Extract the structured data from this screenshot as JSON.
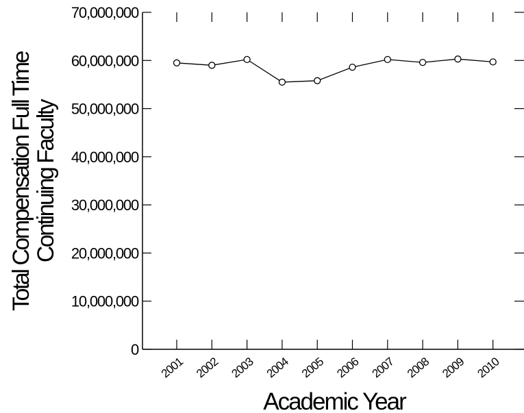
{
  "chart_data": {
    "type": "line",
    "title": "",
    "xlabel": "Academic Year",
    "ylabel": [
      "Total Compensation Full Time",
      "Continuing Faculty"
    ],
    "categories": [
      "2001",
      "2002",
      "2003",
      "2004",
      "2005",
      "2006",
      "2007",
      "2008",
      "2009",
      "2010"
    ],
    "series": [
      {
        "values": [
          59500000,
          59000000,
          60200000,
          55500000,
          55800000,
          58600000,
          60200000,
          59600000,
          60300000,
          59700000
        ]
      }
    ],
    "ylim": [
      0,
      70000000
    ],
    "yticks": [
      0,
      10000000,
      20000000,
      30000000,
      40000000,
      50000000,
      60000000,
      70000000
    ],
    "ytick_labels": [
      "0",
      "10,000,000",
      "20,000,000",
      "30,000,000",
      "40,000,000",
      "50,000,000",
      "60,000,000",
      "70,000,000"
    ],
    "grid": false,
    "legend": false,
    "line_color": "#000000",
    "marker": "open-circle"
  }
}
